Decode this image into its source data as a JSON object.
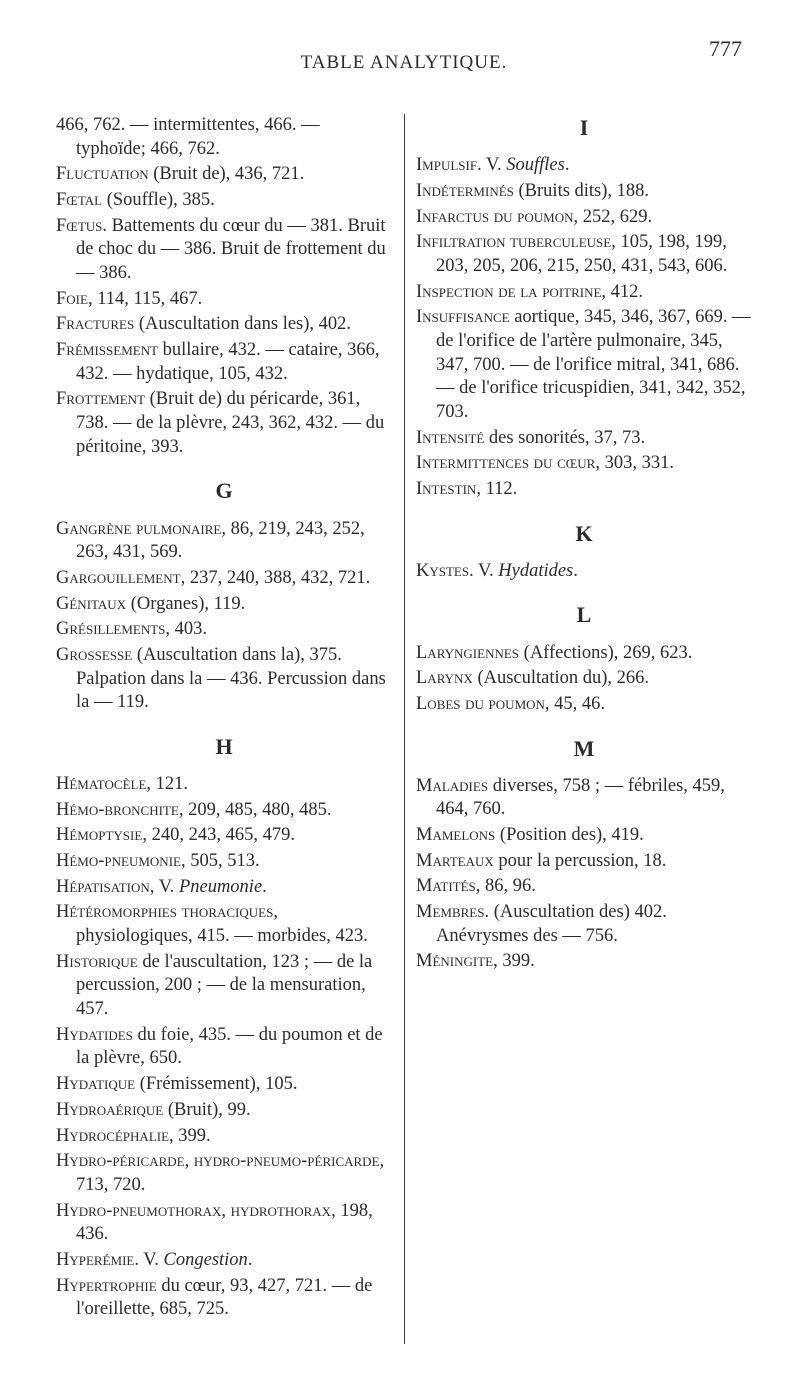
{
  "page_number": "777",
  "running_title": "TABLE ANALYTIQUE.",
  "columns": [
    [
      {
        "type": "entry",
        "html": "466, 762. — intermittentes, 466. — typhoïde; 466, 762."
      },
      {
        "type": "entry",
        "html": "<span class='sc'>Fluctuation</span> (Bruit de), 436, 721."
      },
      {
        "type": "entry",
        "html": "<span class='sc'>Fœtal</span> (Souffle), 385."
      },
      {
        "type": "entry",
        "html": "<span class='sc'>Fœtus</span>. Battements du cœur du — 381. Bruit de choc du — 386. Bruit de frottement du — 386."
      },
      {
        "type": "entry",
        "html": "<span class='sc'>Foie</span>, 114, 115, 467."
      },
      {
        "type": "entry",
        "html": "<span class='sc'>Fractures</span> (Auscultation dans les), 402."
      },
      {
        "type": "entry",
        "html": "<span class='sc'>Frémissement</span> bullaire, 432. — cataire, 366, 432. — hydatique, 105, 432."
      },
      {
        "type": "entry",
        "html": "<span class='sc'>Frottement</span> (Bruit de) du péricarde, 361, 738. — de la plèvre, 243, 362, 432. — du péritoine, 393."
      },
      {
        "type": "letter",
        "text": "G"
      },
      {
        "type": "entry",
        "html": "<span class='sc'>Gangrène pulmonaire</span>, 86, 219, 243, 252, 263, 431, 569."
      },
      {
        "type": "entry",
        "html": "<span class='sc'>Gargouillement</span>, 237, 240, 388, 432, 721."
      },
      {
        "type": "entry",
        "html": "<span class='sc'>Génitaux</span> (Organes), 119."
      },
      {
        "type": "entry",
        "html": "<span class='sc'>Grésillements</span>, 403."
      },
      {
        "type": "entry",
        "html": "<span class='sc'>Grossesse</span> (Auscultation dans la), 375. Palpation dans la — 436. Percussion dans la — 119."
      },
      {
        "type": "letter",
        "text": "H"
      },
      {
        "type": "entry",
        "html": "<span class='sc'>Hématocèle</span>, 121."
      },
      {
        "type": "entry",
        "html": "<span class='sc'>Hémo-bronchite</span>, 209, 485, 480, 485."
      },
      {
        "type": "entry",
        "html": "<span class='sc'>Hémoptysie</span>, 240, 243, 465, 479."
      },
      {
        "type": "entry",
        "html": "<span class='sc'>Hémo-pneumonie</span>, 505, 513."
      },
      {
        "type": "entry",
        "html": "<span class='sc'>Hépatisation</span>, V. <span class='it'>Pneumonie</span>."
      },
      {
        "type": "entry",
        "html": "<span class='sc'>Hétéromorphies thoraciques</span>, physiologiques, 415. — morbides, 423."
      },
      {
        "type": "entry",
        "html": "<span class='sc'>Historique</span> de l'auscultation, 123 ; — de la percussion, 200 ; — de la mensuration, 457."
      },
      {
        "type": "entry",
        "html": "<span class='sc'>Hydatides</span> du foie, 435. — du poumon et de la plèvre, 650."
      },
      {
        "type": "entry",
        "html": "<span class='sc'>Hydatique</span> (Frémissement), 105."
      },
      {
        "type": "entry",
        "html": "<span class='sc'>Hydroaérique</span> (Bruit), 99."
      },
      {
        "type": "entry",
        "html": "<span class='sc'>Hydrocéphalie</span>, 399."
      }
    ],
    [
      {
        "type": "entry",
        "html": "<span class='sc'>Hydro-péricarde</span>, <span class='sc'>hydro-pneumo-péricarde</span>, 713, 720."
      },
      {
        "type": "entry",
        "html": "<span class='sc'>Hydro-pneumothorax</span>, <span class='sc'>hydrothorax</span>, 198, 436."
      },
      {
        "type": "entry",
        "html": "<span class='sc'>Hyperémie</span>. V. <span class='it'>Congestion</span>."
      },
      {
        "type": "entry",
        "html": "<span class='sc'>Hypertrophie</span> du cœur, 93, 427, 721. — de l'oreillette, 685, 725."
      },
      {
        "type": "letter",
        "text": "I"
      },
      {
        "type": "entry",
        "html": "<span class='sc'>Impulsif</span>. V. <span class='it'>Souffles</span>."
      },
      {
        "type": "entry",
        "html": "<span class='sc'>Indéterminés</span> (Bruits dits), 188."
      },
      {
        "type": "entry",
        "html": "<span class='sc'>Infarctus du poumon</span>, 252, 629."
      },
      {
        "type": "entry",
        "html": "<span class='sc'>Infiltration tuberculeuse</span>, 105, 198, 199, 203, 205, 206, 215, 250, 431, 543, 606."
      },
      {
        "type": "entry",
        "html": "<span class='sc'>Inspection de la poitrine</span>, 412."
      },
      {
        "type": "entry",
        "html": "<span class='sc'>Insuffisance</span> aortique, 345, 346, 367, 669. — de l'orifice de l'artère pulmonaire, 345, 347, 700. — de l'orifice mitral, 341, 686. — de l'orifice tricuspidien, 341, 342, 352, 703."
      },
      {
        "type": "entry",
        "html": "<span class='sc'>Intensité</span> des sonorités, 37, 73."
      },
      {
        "type": "entry",
        "html": "<span class='sc'>Intermittences du cœur</span>, 303, 331."
      },
      {
        "type": "entry",
        "html": "<span class='sc'>Intestin</span>, 112."
      },
      {
        "type": "letter",
        "text": "K"
      },
      {
        "type": "entry",
        "html": "<span class='sc'>Kystes</span>. V. <span class='it'>Hydatides</span>."
      },
      {
        "type": "letter",
        "text": "L"
      },
      {
        "type": "entry",
        "html": "<span class='sc'>Laryngiennes</span> (Affections), 269, 623."
      },
      {
        "type": "entry",
        "html": "<span class='sc'>Larynx</span> (Auscultation du), 266."
      },
      {
        "type": "entry",
        "html": "<span class='sc'>Lobes du poumon</span>, 45, 46."
      },
      {
        "type": "letter",
        "text": "M"
      },
      {
        "type": "entry",
        "html": "<span class='sc'>Maladies</span> diverses, 758 ; — fébriles, 459, 464, 760."
      },
      {
        "type": "entry",
        "html": "<span class='sc'>Mamelons</span> (Position des), 419."
      },
      {
        "type": "entry",
        "html": "<span class='sc'>Marteaux</span> pour la percussion, 18."
      },
      {
        "type": "entry",
        "html": "<span class='sc'>Matités</span>, 86, 96."
      },
      {
        "type": "entry",
        "html": "<span class='sc'>Membres</span>. (Auscultation des) 402. Anévrysmes des — 756."
      },
      {
        "type": "entry",
        "html": "<span class='sc'>Méningite</span>, 399."
      }
    ]
  ]
}
